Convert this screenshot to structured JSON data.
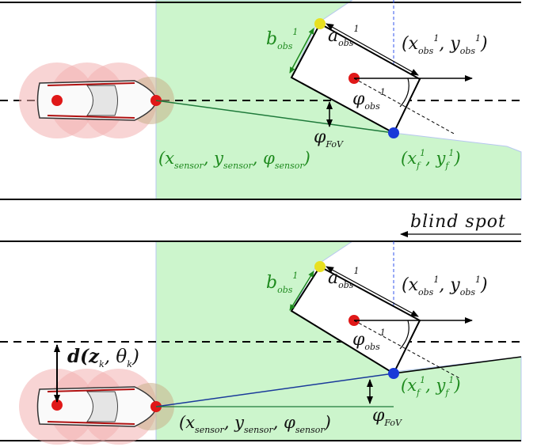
{
  "top_panel": {
    "a_label": "a",
    "a_sub": "obs",
    "a_sup": "1",
    "b_label": "b",
    "b_sub": "obs",
    "b_sup": "1",
    "obs_pos_label": "(x",
    "obs_pos_label_mid": ", y",
    "obs_pos_label_end": ")",
    "obs_sub": "obs",
    "obs_sup": "1",
    "phi_obs_label": "φ",
    "phi_obs_sub": "obs",
    "phi_obs_sup": "1",
    "phi_fov_label": "φ",
    "phi_fov_sub": "FoV",
    "sensor_label": "(x",
    "sensor_sub_x": "sensor",
    "sensor_mid_y": ", y",
    "sensor_sub_y": "sensor",
    "sensor_mid_phi": ", φ",
    "sensor_sub_phi": "sensor",
    "sensor_end": ")",
    "f_label": "(x",
    "f_sub": "f",
    "f_sup": "1",
    "f_mid": ", y",
    "f_end": ")"
  },
  "divider": {
    "blind_spot_label": "blind spot"
  },
  "bottom_panel": {
    "a_label": "a",
    "a_sub": "obs",
    "a_sup": "1",
    "b_label": "b",
    "b_sub": "obs",
    "b_sup": "1",
    "obs_pos_label": "(x",
    "obs_pos_label_mid": ", y",
    "obs_pos_label_end": ")",
    "obs_sub": "obs",
    "obs_sup": "1",
    "phi_obs_label": "φ",
    "phi_obs_sub": "obs",
    "phi_obs_sup": "1",
    "distance_label": "d(z",
    "distance_sub_k": "k",
    "distance_mid": ", θ",
    "distance_end": ")",
    "phi_fov_label": "φ",
    "phi_fov_sub": "FoV",
    "sensor_label": "(x",
    "sensor_sub_x": "sensor",
    "sensor_mid_y": ", y",
    "sensor_sub_y": "sensor",
    "sensor_mid_phi": ", φ",
    "sensor_sub_phi": "sensor",
    "sensor_end": ")",
    "f_label": "(x",
    "f_sub": "f",
    "f_sup": "1",
    "f_mid": ", y",
    "f_end": ")"
  },
  "colors": {
    "fov_fill": "#ccf5cc",
    "car_halo": "#f3b0b0",
    "point_red": "#e01818",
    "point_blue": "#1a3ad8",
    "point_yellow": "#e8e020",
    "label_green": "#1e8a1e"
  }
}
